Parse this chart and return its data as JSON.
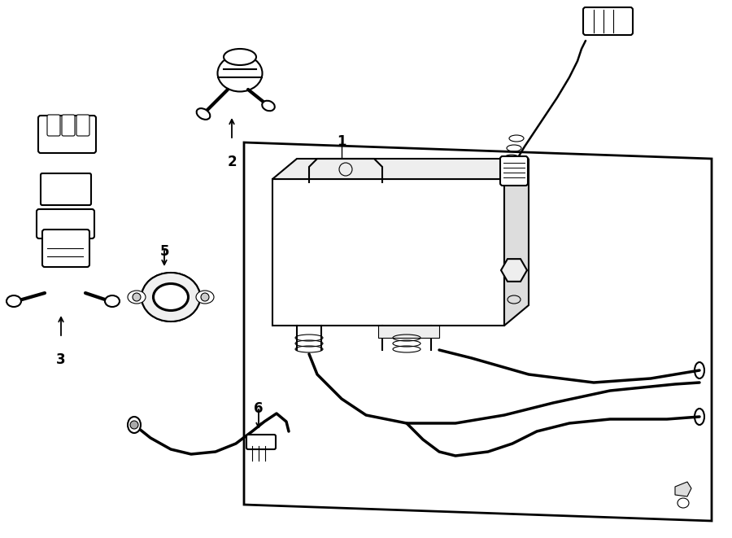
{
  "bg_color": "#ffffff",
  "line_color": "#000000",
  "lw_main": 1.5,
  "lw_thick": 2.5,
  "lw_thin": 0.8,
  "label_fontsize": 12,
  "figsize": [
    9.0,
    6.61
  ],
  "dpi": 100
}
